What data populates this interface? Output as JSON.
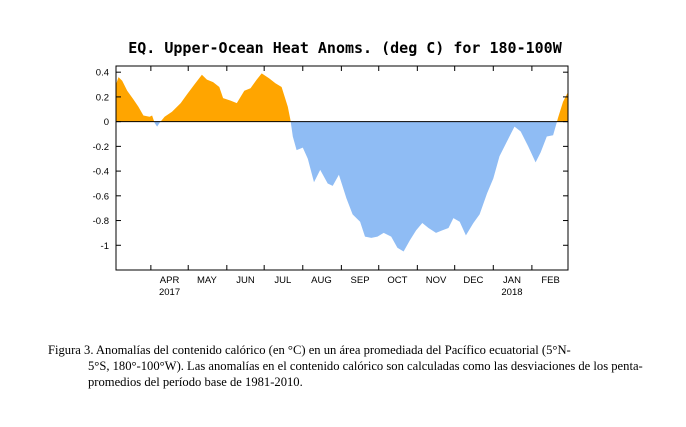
{
  "chart_data": {
    "type": "area",
    "title": "EQ. Upper-Ocean Heat Anoms. (deg C) for 180-100W",
    "xlabel": "",
    "ylabel": "",
    "ylim": [
      -1.2,
      0.45
    ],
    "yticks": [
      {
        "value": 0.4,
        "label": "0.4"
      },
      {
        "value": 0.2,
        "label": "0.2"
      },
      {
        "value": 0,
        "label": "0"
      },
      {
        "value": -0.2,
        "label": "-0.2"
      },
      {
        "value": -0.4,
        "label": "-0.4"
      },
      {
        "value": -0.6,
        "label": "-0.6"
      },
      {
        "value": -0.8,
        "label": "-0.8"
      },
      {
        "value": -1,
        "label": "-1"
      }
    ],
    "xlim": [
      "2017-03-04",
      "2018-03-02"
    ],
    "xticks": [
      {
        "date": "2017-04-01",
        "label": "APR",
        "year": "2017"
      },
      {
        "date": "2017-05-01",
        "label": "MAY",
        "year": ""
      },
      {
        "date": "2017-06-01",
        "label": "JUN",
        "year": ""
      },
      {
        "date": "2017-07-01",
        "label": "JUL",
        "year": ""
      },
      {
        "date": "2017-08-01",
        "label": "AUG",
        "year": ""
      },
      {
        "date": "2017-09-01",
        "label": "SEP",
        "year": ""
      },
      {
        "date": "2017-10-01",
        "label": "OCT",
        "year": ""
      },
      {
        "date": "2017-11-01",
        "label": "NOV",
        "year": ""
      },
      {
        "date": "2017-12-01",
        "label": "DEC",
        "year": ""
      },
      {
        "date": "2018-01-01",
        "label": "JAN",
        "year": "2018"
      },
      {
        "date": "2018-02-01",
        "label": "FEB",
        "year": ""
      }
    ],
    "positive_color": "#ffa500",
    "negative_color": "#8fbcf4",
    "points": [
      {
        "x": "2017-03-04",
        "y": 0.3
      },
      {
        "x": "2017-03-06",
        "y": 0.36
      },
      {
        "x": "2017-03-09",
        "y": 0.33
      },
      {
        "x": "2017-03-13",
        "y": 0.25
      },
      {
        "x": "2017-03-18",
        "y": 0.18
      },
      {
        "x": "2017-03-22",
        "y": 0.12
      },
      {
        "x": "2017-03-26",
        "y": 0.05
      },
      {
        "x": "2017-03-31",
        "y": 0.04
      },
      {
        "x": "2017-04-02",
        "y": 0.05
      },
      {
        "x": "2017-04-04",
        "y": -0.01
      },
      {
        "x": "2017-04-06",
        "y": -0.04
      },
      {
        "x": "2017-04-08",
        "y": -0.01
      },
      {
        "x": "2017-04-12",
        "y": 0.04
      },
      {
        "x": "2017-04-18",
        "y": 0.08
      },
      {
        "x": "2017-04-25",
        "y": 0.15
      },
      {
        "x": "2017-04-30",
        "y": 0.22
      },
      {
        "x": "2017-05-06",
        "y": 0.3
      },
      {
        "x": "2017-05-12",
        "y": 0.38
      },
      {
        "x": "2017-05-16",
        "y": 0.34
      },
      {
        "x": "2017-05-21",
        "y": 0.32
      },
      {
        "x": "2017-05-26",
        "y": 0.28
      },
      {
        "x": "2017-05-29",
        "y": 0.19
      },
      {
        "x": "2017-06-04",
        "y": 0.17
      },
      {
        "x": "2017-06-09",
        "y": 0.15
      },
      {
        "x": "2017-06-15",
        "y": 0.25
      },
      {
        "x": "2017-06-20",
        "y": 0.27
      },
      {
        "x": "2017-06-25",
        "y": 0.34
      },
      {
        "x": "2017-06-29",
        "y": 0.39
      },
      {
        "x": "2017-07-05",
        "y": 0.35
      },
      {
        "x": "2017-07-10",
        "y": 0.31
      },
      {
        "x": "2017-07-15",
        "y": 0.28
      },
      {
        "x": "2017-07-20",
        "y": 0.12
      },
      {
        "x": "2017-07-22",
        "y": 0.02
      },
      {
        "x": "2017-07-24",
        "y": -0.12
      },
      {
        "x": "2017-07-27",
        "y": -0.23
      },
      {
        "x": "2017-08-01",
        "y": -0.21
      },
      {
        "x": "2017-08-05",
        "y": -0.3
      },
      {
        "x": "2017-08-10",
        "y": -0.49
      },
      {
        "x": "2017-08-15",
        "y": -0.39
      },
      {
        "x": "2017-08-21",
        "y": -0.5
      },
      {
        "x": "2017-08-25",
        "y": -0.52
      },
      {
        "x": "2017-08-30",
        "y": -0.43
      },
      {
        "x": "2017-09-05",
        "y": -0.62
      },
      {
        "x": "2017-09-10",
        "y": -0.75
      },
      {
        "x": "2017-09-16",
        "y": -0.81
      },
      {
        "x": "2017-09-20",
        "y": -0.93
      },
      {
        "x": "2017-09-25",
        "y": -0.94
      },
      {
        "x": "2017-09-30",
        "y": -0.93
      },
      {
        "x": "2017-10-05",
        "y": -0.9
      },
      {
        "x": "2017-10-11",
        "y": -0.93
      },
      {
        "x": "2017-10-16",
        "y": -1.02
      },
      {
        "x": "2017-10-21",
        "y": -1.05
      },
      {
        "x": "2017-10-26",
        "y": -0.96
      },
      {
        "x": "2017-10-31",
        "y": -0.88
      },
      {
        "x": "2017-11-05",
        "y": -0.82
      },
      {
        "x": "2017-11-10",
        "y": -0.86
      },
      {
        "x": "2017-11-16",
        "y": -0.9
      },
      {
        "x": "2017-11-21",
        "y": -0.88
      },
      {
        "x": "2017-11-26",
        "y": -0.86
      },
      {
        "x": "2017-11-30",
        "y": -0.78
      },
      {
        "x": "2017-12-05",
        "y": -0.81
      },
      {
        "x": "2017-12-10",
        "y": -0.92
      },
      {
        "x": "2017-12-16",
        "y": -0.82
      },
      {
        "x": "2017-12-21",
        "y": -0.75
      },
      {
        "x": "2017-12-27",
        "y": -0.58
      },
      {
        "x": "2018-01-01",
        "y": -0.46
      },
      {
        "x": "2018-01-06",
        "y": -0.28
      },
      {
        "x": "2018-01-12",
        "y": -0.16
      },
      {
        "x": "2018-01-18",
        "y": -0.04
      },
      {
        "x": "2018-01-23",
        "y": -0.08
      },
      {
        "x": "2018-01-29",
        "y": -0.2
      },
      {
        "x": "2018-02-04",
        "y": -0.33
      },
      {
        "x": "2018-02-08",
        "y": -0.25
      },
      {
        "x": "2018-02-13",
        "y": -0.12
      },
      {
        "x": "2018-02-18",
        "y": -0.11
      },
      {
        "x": "2018-02-22",
        "y": 0.03
      },
      {
        "x": "2018-02-26",
        "y": 0.16
      },
      {
        "x": "2018-03-02",
        "y": 0.24
      }
    ]
  },
  "caption": {
    "lead": "Figura 3. Anomalías del contenido calórico (en °C) en un área promediada del Pacífico ecuatorial (5°N-",
    "rest": "5°S, 180°-100°W). Las anomalías en el contenido calórico son calculadas como las desviaciones de los penta-promedios del período base de 1981-2010."
  }
}
